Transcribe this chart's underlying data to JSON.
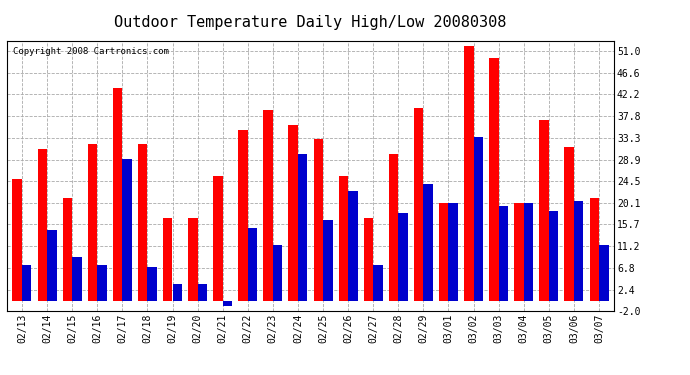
{
  "title": "Outdoor Temperature Daily High/Low 20080308",
  "copyright": "Copyright 2008 Cartronics.com",
  "dates": [
    "02/13",
    "02/14",
    "02/15",
    "02/16",
    "02/17",
    "02/18",
    "02/19",
    "02/20",
    "02/21",
    "02/22",
    "02/23",
    "02/24",
    "02/25",
    "02/26",
    "02/27",
    "02/28",
    "02/29",
    "03/01",
    "03/02",
    "03/03",
    "03/04",
    "03/05",
    "03/06",
    "03/07"
  ],
  "highs": [
    25.0,
    31.0,
    21.0,
    32.0,
    43.5,
    32.0,
    17.0,
    17.0,
    25.5,
    35.0,
    39.0,
    36.0,
    33.0,
    25.5,
    17.0,
    30.0,
    39.5,
    20.0,
    52.0,
    49.5,
    20.0,
    37.0,
    31.5,
    21.0
  ],
  "lows": [
    7.5,
    14.5,
    9.0,
    7.5,
    29.0,
    7.0,
    3.5,
    3.5,
    -1.0,
    15.0,
    11.5,
    30.0,
    16.5,
    22.5,
    7.5,
    18.0,
    24.0,
    20.0,
    33.5,
    19.5,
    20.0,
    18.5,
    20.5,
    11.5
  ],
  "high_color": "#ff0000",
  "low_color": "#0000cc",
  "bg_color": "#ffffff",
  "grid_color": "#aaaaaa",
  "yticks": [
    -2.0,
    2.4,
    6.8,
    11.2,
    15.7,
    20.1,
    24.5,
    28.9,
    33.3,
    37.8,
    42.2,
    46.6,
    51.0
  ],
  "ymin": -2.0,
  "ymax": 53.0,
  "bar_width": 0.38,
  "title_fontsize": 11,
  "copyright_fontsize": 6.5,
  "tick_fontsize": 7,
  "fig_width": 6.9,
  "fig_height": 3.75,
  "dpi": 100
}
